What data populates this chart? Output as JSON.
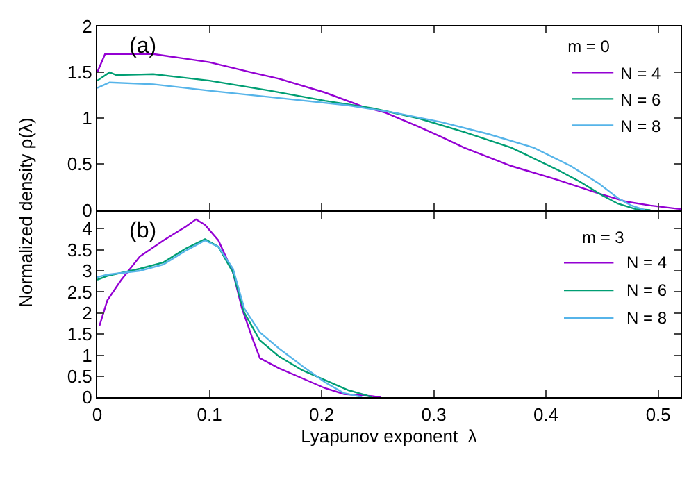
{
  "chart_data": [
    {
      "type": "line",
      "annotations": [
        "(a)"
      ],
      "ylabel": "Normalized density ρ(λ)",
      "legend_title": "m = 0",
      "legend": "top right",
      "tick_labels": "y",
      "xlim": [
        0,
        0.52
      ],
      "xticks": [
        {
          "value": 0,
          "label": null
        },
        {
          "value": 0.1,
          "label": null
        },
        {
          "value": 0.2,
          "label": null
        },
        {
          "value": 0.3,
          "label": null
        },
        {
          "value": 0.4,
          "label": null
        },
        {
          "value": 0.5,
          "label": null
        }
      ],
      "ylim": [
        0,
        2
      ],
      "yticks": [
        0,
        0.5,
        1,
        1.5,
        2
      ],
      "series": [
        {
          "name": "N = 4",
          "color": "#9400d3",
          "x": [
            0,
            0.007,
            0.05,
            0.1,
            0.137,
            0.162,
            0.203,
            0.236,
            0.257,
            0.286,
            0.306,
            0.327,
            0.369,
            0.41,
            0.447,
            0.472,
            0.493,
            0.52
          ],
          "values": [
            1.5,
            1.7,
            1.7,
            1.61,
            1.5,
            1.43,
            1.28,
            1.13,
            1.06,
            0.91,
            0.8,
            0.68,
            0.48,
            0.33,
            0.18,
            0.09,
            0.05,
            0.01
          ]
        },
        {
          "name": "N = 6",
          "color": "#009e73",
          "x": [
            0,
            0.011,
            0.017,
            0.05,
            0.1,
            0.154,
            0.203,
            0.245,
            0.286,
            0.327,
            0.369,
            0.41,
            0.43,
            0.45,
            0.464,
            0.48,
            0.493
          ],
          "values": [
            1.41,
            1.5,
            1.47,
            1.48,
            1.41,
            1.3,
            1.19,
            1.11,
            1.0,
            0.85,
            0.68,
            0.44,
            0.31,
            0.16,
            0.07,
            0.01,
            0
          ]
        },
        {
          "name": "N = 8",
          "color": "#56b4e9",
          "x": [
            0,
            0.011,
            0.05,
            0.1,
            0.162,
            0.224,
            0.265,
            0.306,
            0.348,
            0.389,
            0.422,
            0.447,
            0.464,
            0.476,
            0.488
          ],
          "values": [
            1.33,
            1.39,
            1.37,
            1.3,
            1.22,
            1.14,
            1.06,
            0.96,
            0.83,
            0.68,
            0.48,
            0.29,
            0.13,
            0.05,
            0
          ]
        }
      ]
    },
    {
      "type": "line",
      "annotations": [
        "(b)"
      ],
      "xlabel": "Lyapunov exponent  λ",
      "legend_title": "m = 3",
      "legend": "top right",
      "xlim": [
        0,
        0.52
      ],
      "xticks": [
        0,
        0.1,
        0.2,
        0.3,
        0.4,
        0.5
      ],
      "ylim": [
        0,
        4.4
      ],
      "yticks": [
        0,
        0.5,
        1,
        1.5,
        2,
        2.5,
        3,
        3.5,
        4
      ],
      "series": [
        {
          "name": "N = 4",
          "color": "#9400d3",
          "x": [
            0.002,
            0.009,
            0.021,
            0.038,
            0.059,
            0.079,
            0.088,
            0.096,
            0.108,
            0.121,
            0.129,
            0.139,
            0.145,
            0.162,
            0.183,
            0.203,
            0.22,
            0.245,
            0.253
          ],
          "values": [
            1.7,
            2.3,
            2.77,
            3.34,
            3.72,
            4.05,
            4.22,
            4.09,
            3.72,
            2.96,
            2.11,
            1.35,
            0.93,
            0.69,
            0.45,
            0.22,
            0.08,
            0.03,
            0
          ]
        },
        {
          "name": "N = 6",
          "color": "#009e73",
          "x": [
            0,
            0.009,
            0.038,
            0.059,
            0.079,
            0.096,
            0.108,
            0.121,
            0.131,
            0.145,
            0.162,
            0.183,
            0.203,
            0.224,
            0.24,
            0.245
          ],
          "values": [
            2.79,
            2.88,
            3.05,
            3.2,
            3.53,
            3.75,
            3.57,
            2.96,
            2.01,
            1.35,
            0.97,
            0.64,
            0.41,
            0.17,
            0.05,
            0
          ]
        },
        {
          "name": "N = 8",
          "color": "#56b4e9",
          "x": [
            0,
            0.009,
            0.038,
            0.059,
            0.079,
            0.096,
            0.108,
            0.121,
            0.131,
            0.145,
            0.162,
            0.183,
            0.203,
            0.22,
            0.236
          ],
          "values": [
            2.85,
            2.91,
            3.0,
            3.15,
            3.48,
            3.72,
            3.57,
            3.05,
            2.11,
            1.54,
            1.16,
            0.74,
            0.36,
            0.1,
            0.01
          ]
        }
      ]
    }
  ]
}
